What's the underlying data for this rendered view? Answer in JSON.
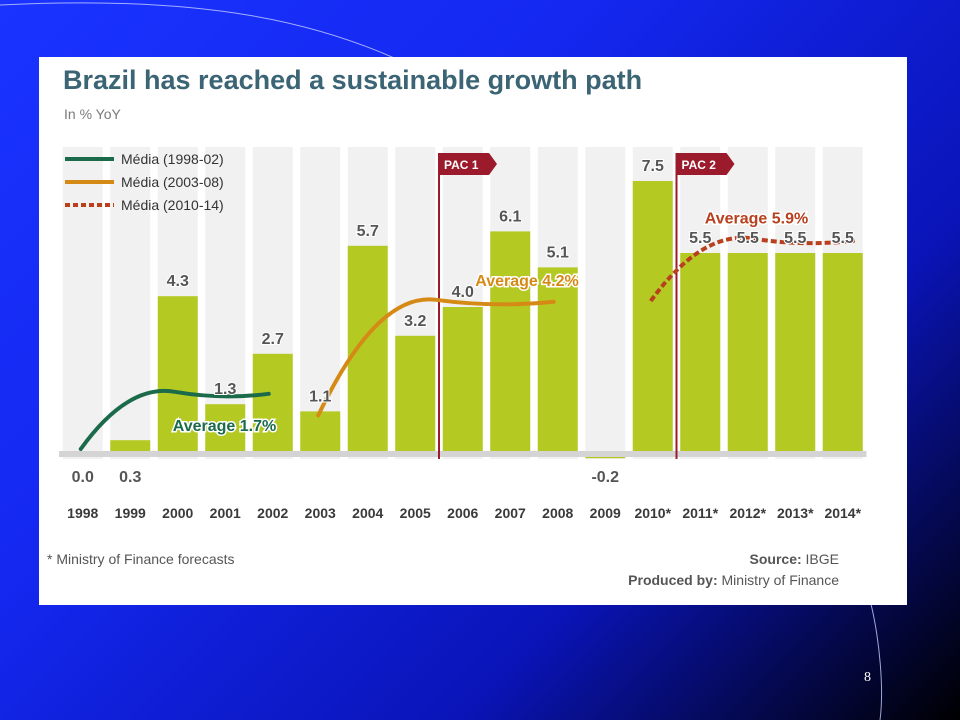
{
  "slide": {
    "page_number": "8",
    "footnote": "* Ministry of Finance forecasts",
    "source_label": "Source:",
    "source_value": "IBGE",
    "produced_label": "Produced by:",
    "produced_value": "Ministry of Finance"
  },
  "colors": {
    "bar": "#b5c923",
    "band": "#f1f1f1",
    "pac_line": "#9b1b2c",
    "avg_1998_02": "#1b6b4a",
    "avg_2003_08": "#d68a16",
    "avg_2010_14": "#b8401e",
    "title": "#3b6475"
  },
  "chart_data": {
    "type": "bar",
    "title": "Brazil has reached a sustainable growth path",
    "subtitle": "In % YoY",
    "categories": [
      "1998",
      "1999",
      "2000",
      "2001",
      "2002",
      "2003",
      "2004",
      "2005",
      "2006",
      "2007",
      "2008",
      "2009",
      "2010*",
      "2011*",
      "2012*",
      "2013*",
      "2014*"
    ],
    "values": [
      0.0,
      0.3,
      4.3,
      1.3,
      2.7,
      1.1,
      5.7,
      3.2,
      4.0,
      6.1,
      5.1,
      -0.2,
      7.5,
      5.5,
      5.5,
      5.5,
      5.5
    ],
    "value_labels": [
      "0.0",
      "0.3",
      "4.3",
      "1.3",
      "2.7",
      "1.1",
      "5.7",
      "3.2",
      "4.0",
      "6.1",
      "5.1",
      "-0.2",
      "7.5",
      "5.5",
      "5.5",
      "5.5",
      "5.5"
    ],
    "ylim": [
      -0.3,
      8.5
    ],
    "legend": {
      "placement": "top-left",
      "items": [
        {
          "label": "Média (1998-02)",
          "style": "solid",
          "color": "#1b6b4a"
        },
        {
          "label": "Média (2003-08)",
          "style": "solid",
          "color": "#d68a16"
        },
        {
          "label": "Média (2010-14)",
          "style": "dashed",
          "color": "#b8401e"
        }
      ]
    },
    "averages": [
      {
        "label": "Average 1.7%",
        "value": 1.7,
        "from": "1998",
        "to": "2002",
        "color": "#1b6b4a"
      },
      {
        "label": "Average 4.2%",
        "value": 4.2,
        "from": "2003",
        "to": "2008",
        "color": "#d68a16"
      },
      {
        "label": "Average 5.9%",
        "value": 5.9,
        "from": "2010*",
        "to": "2014*",
        "color": "#b8401e"
      }
    ],
    "markers": [
      {
        "label": "PAC 1",
        "between": [
          "2005",
          "2006"
        ]
      },
      {
        "label": "PAC 2",
        "between": [
          "2010*",
          "2011*"
        ]
      }
    ]
  }
}
